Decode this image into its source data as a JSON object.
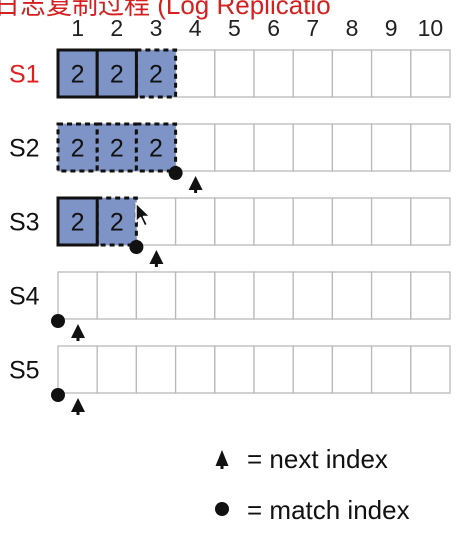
{
  "title": {
    "text": "日志复制过程 (Log Replicatio",
    "color": "#d42020"
  },
  "indices": [
    "1",
    "2",
    "3",
    "4",
    "5",
    "6",
    "7",
    "8",
    "9",
    "10"
  ],
  "colors": {
    "entry_fill": "#7e93c6",
    "leader_label": "#e02020",
    "follower_label": "#111111"
  },
  "servers": [
    {
      "name": "S1",
      "is_leader": true,
      "entries": [
        {
          "term": "2",
          "style": "committed"
        },
        {
          "term": "2",
          "style": "committed"
        },
        {
          "term": "2",
          "style": "pending"
        }
      ],
      "next_index": null,
      "match_index": null
    },
    {
      "name": "S2",
      "is_leader": false,
      "entries": [
        {
          "term": "2",
          "style": "pending"
        },
        {
          "term": "2",
          "style": "pending"
        },
        {
          "term": "2",
          "style": "pending"
        }
      ],
      "next_index": 4,
      "match_index": 3
    },
    {
      "name": "S3",
      "is_leader": false,
      "entries": [
        {
          "term": "2",
          "style": "committed"
        },
        {
          "term": "2",
          "style": "pending"
        }
      ],
      "next_index": 3,
      "match_index": 2
    },
    {
      "name": "S4",
      "is_leader": false,
      "entries": [],
      "next_index": 1,
      "match_index": 0
    },
    {
      "name": "S5",
      "is_leader": false,
      "entries": [],
      "next_index": 1,
      "match_index": 0
    }
  ],
  "legend": {
    "next_icon": "triangle-up-icon",
    "next_label": "= next index",
    "match_icon": "dot-icon",
    "match_label": "= match index"
  },
  "cursor_icon": "mouse-pointer-icon"
}
